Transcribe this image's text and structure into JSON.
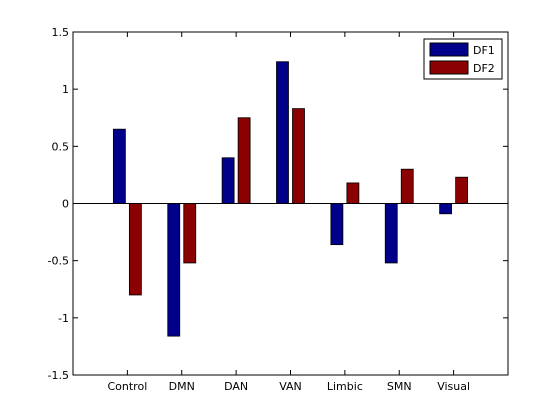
{
  "chart_data": {
    "type": "bar",
    "categories": [
      "Control",
      "DMN",
      "DAN",
      "VAN",
      "Limbic",
      "SMN",
      "Visual"
    ],
    "series": [
      {
        "name": "DF1",
        "color": "#00008b",
        "values": [
          0.65,
          -1.16,
          0.4,
          1.24,
          -0.36,
          -0.52,
          -0.09
        ]
      },
      {
        "name": "DF2",
        "color": "#8b0000",
        "values": [
          -0.8,
          -0.52,
          0.75,
          0.83,
          0.18,
          0.3,
          0.23
        ]
      }
    ],
    "ylim": [
      -1.5,
      1.5
    ],
    "yticks": [
      -1.5,
      -1,
      -0.5,
      0,
      0.5,
      1,
      1.5
    ],
    "ytick_labels": [
      "-1.5",
      "-1",
      "-0.5",
      "0",
      "0.5",
      "1",
      "1.5"
    ],
    "grid": false,
    "legend_position": "top-right",
    "zero_line": true
  }
}
